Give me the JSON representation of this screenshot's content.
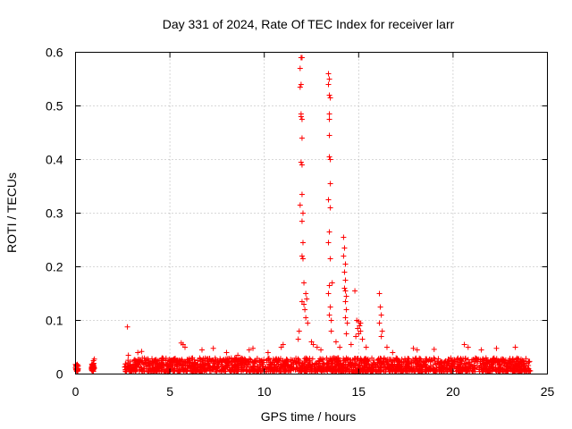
{
  "chart_data": {
    "type": "scatter",
    "title": "Day 331 of 2024, Rate Of TEC Index for receiver larr",
    "xlabel": "GPS time / hours",
    "ylabel": "ROTI / TECUs",
    "xlim": [
      0,
      25
    ],
    "ylim": [
      0,
      0.6
    ],
    "x_ticks": [
      0,
      5,
      10,
      15,
      20,
      25
    ],
    "x_tick_labels": [
      "0",
      "5",
      "10",
      "15",
      "20",
      "25"
    ],
    "y_ticks": [
      0,
      0.1,
      0.2,
      0.3,
      0.4,
      0.5,
      0.6
    ],
    "y_tick_labels": [
      "0",
      "0.1",
      "0.2",
      "0.3",
      "0.4",
      "0.5",
      "0.6"
    ],
    "grid": true,
    "marker": "+",
    "marker_color": "#ff0000",
    "series": [
      {
        "name": "ROTI",
        "points": [
          [
            0.0,
            0.012
          ],
          [
            0.05,
            0.015
          ],
          [
            0.1,
            0.01
          ],
          [
            0.0,
            0.018
          ],
          [
            0.08,
            0.008
          ],
          [
            0.85,
            0.01
          ],
          [
            0.9,
            0.015
          ],
          [
            0.95,
            0.025
          ],
          [
            1.0,
            0.028
          ],
          [
            0.9,
            0.012
          ],
          [
            2.75,
            0.088
          ],
          [
            11.95,
            0.59
          ],
          [
            12.0,
            0.59
          ],
          [
            11.9,
            0.57
          ],
          [
            11.95,
            0.54
          ],
          [
            11.9,
            0.535
          ],
          [
            11.95,
            0.485
          ],
          [
            11.95,
            0.48
          ],
          [
            12.0,
            0.475
          ],
          [
            12.0,
            0.44
          ],
          [
            11.95,
            0.395
          ],
          [
            12.0,
            0.39
          ],
          [
            12.0,
            0.335
          ],
          [
            11.9,
            0.315
          ],
          [
            12.05,
            0.3
          ],
          [
            12.0,
            0.285
          ],
          [
            12.05,
            0.245
          ],
          [
            12.0,
            0.22
          ],
          [
            12.05,
            0.215
          ],
          [
            12.1,
            0.17
          ],
          [
            12.0,
            0.135
          ],
          [
            12.1,
            0.13
          ],
          [
            12.15,
            0.12
          ],
          [
            12.2,
            0.105
          ],
          [
            12.3,
            0.095
          ],
          [
            12.2,
            0.15
          ],
          [
            12.25,
            0.14
          ],
          [
            11.85,
            0.08
          ],
          [
            11.8,
            0.065
          ],
          [
            13.4,
            0.56
          ],
          [
            13.45,
            0.55
          ],
          [
            13.4,
            0.54
          ],
          [
            13.45,
            0.52
          ],
          [
            13.5,
            0.515
          ],
          [
            13.45,
            0.485
          ],
          [
            13.45,
            0.475
          ],
          [
            13.45,
            0.445
          ],
          [
            13.45,
            0.405
          ],
          [
            13.5,
            0.4
          ],
          [
            13.5,
            0.355
          ],
          [
            13.4,
            0.325
          ],
          [
            13.5,
            0.31
          ],
          [
            13.45,
            0.265
          ],
          [
            13.4,
            0.245
          ],
          [
            13.5,
            0.215
          ],
          [
            13.45,
            0.165
          ],
          [
            13.4,
            0.15
          ],
          [
            13.5,
            0.125
          ],
          [
            13.55,
            0.1
          ],
          [
            13.6,
            0.17
          ],
          [
            13.45,
            0.11
          ],
          [
            13.55,
            0.08
          ],
          [
            14.2,
            0.255
          ],
          [
            14.25,
            0.235
          ],
          [
            14.2,
            0.22
          ],
          [
            14.3,
            0.205
          ],
          [
            14.25,
            0.19
          ],
          [
            14.3,
            0.175
          ],
          [
            14.25,
            0.16
          ],
          [
            14.3,
            0.155
          ],
          [
            14.35,
            0.145
          ],
          [
            14.3,
            0.135
          ],
          [
            14.35,
            0.12
          ],
          [
            14.3,
            0.105
          ],
          [
            14.4,
            0.095
          ],
          [
            14.35,
            0.075
          ],
          [
            14.9,
            0.1
          ],
          [
            15.0,
            0.098
          ],
          [
            15.1,
            0.095
          ],
          [
            15.05,
            0.09
          ],
          [
            14.95,
            0.085
          ],
          [
            15.1,
            0.08
          ],
          [
            15.0,
            0.075
          ],
          [
            14.85,
            0.07
          ],
          [
            15.2,
            0.065
          ],
          [
            14.8,
            0.155
          ],
          [
            16.1,
            0.15
          ],
          [
            16.15,
            0.125
          ],
          [
            16.2,
            0.11
          ],
          [
            16.1,
            0.095
          ],
          [
            16.25,
            0.08
          ],
          [
            16.2,
            0.07
          ],
          [
            10.9,
            0.05
          ],
          [
            11.0,
            0.055
          ],
          [
            12.5,
            0.06
          ],
          [
            12.6,
            0.055
          ],
          [
            12.8,
            0.05
          ],
          [
            13.0,
            0.045
          ],
          [
            13.8,
            0.06
          ],
          [
            14.0,
            0.05
          ],
          [
            14.6,
            0.055
          ],
          [
            15.4,
            0.05
          ],
          [
            16.5,
            0.05
          ],
          [
            16.8,
            0.04
          ],
          [
            17.9,
            0.048
          ],
          [
            18.1,
            0.045
          ],
          [
            19.0,
            0.046
          ],
          [
            20.6,
            0.055
          ],
          [
            20.8,
            0.05
          ],
          [
            21.5,
            0.045
          ],
          [
            22.3,
            0.048
          ],
          [
            23.3,
            0.05
          ],
          [
            5.6,
            0.058
          ],
          [
            5.7,
            0.055
          ],
          [
            5.8,
            0.05
          ],
          [
            6.7,
            0.045
          ],
          [
            7.3,
            0.048
          ],
          [
            9.2,
            0.045
          ],
          [
            9.4,
            0.048
          ],
          [
            10.2,
            0.04
          ],
          [
            3.3,
            0.04
          ],
          [
            3.5,
            0.042
          ],
          [
            4.6,
            0.03
          ],
          [
            8.0,
            0.04
          ],
          [
            8.6,
            0.035
          ],
          [
            2.8,
            0.035
          ]
        ],
        "dense_band": {
          "note": "continuous dense band of low ROTI values",
          "segments": [
            {
              "x_start": 0.0,
              "x_end": 0.15,
              "y_low": 0.005,
              "y_high": 0.018
            },
            {
              "x_start": 0.85,
              "x_end": 1.0,
              "y_low": 0.005,
              "y_high": 0.02
            },
            {
              "x_start": 2.6,
              "x_end": 24.1,
              "y_low": 0.004,
              "y_high": 0.03
            }
          ]
        }
      }
    ]
  }
}
